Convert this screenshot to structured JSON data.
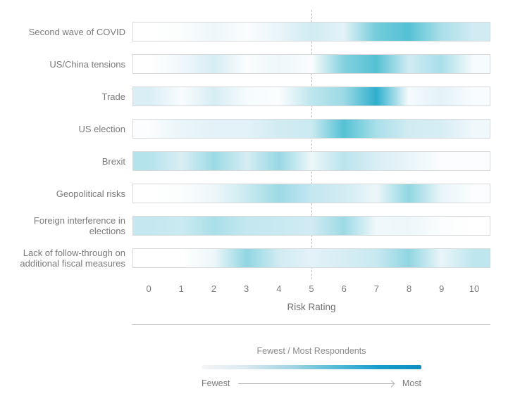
{
  "chart_data": {
    "type": "heatmap",
    "title": "",
    "xlabel": "Risk Rating",
    "x_ticks": [
      "0",
      "1",
      "2",
      "3",
      "4",
      "5",
      "6",
      "7",
      "8",
      "9",
      "10"
    ],
    "x_range": [
      0,
      10
    ],
    "reference_line_x": 5,
    "value_range": [
      0,
      100
    ],
    "rows": [
      {
        "label": "Second wave of COVID",
        "values": [
          0,
          2,
          10,
          2,
          12,
          25,
          15,
          65,
          75,
          45,
          25
        ]
      },
      {
        "label": "US/China tensions",
        "values": [
          0,
          8,
          22,
          2,
          10,
          2,
          60,
          75,
          25,
          45,
          5
        ]
      },
      {
        "label": "Trade",
        "values": [
          20,
          3,
          22,
          5,
          2,
          35,
          50,
          90,
          5,
          15,
          3
        ]
      },
      {
        "label": "US election",
        "values": [
          2,
          12,
          15,
          15,
          25,
          28,
          75,
          45,
          25,
          22,
          8
        ]
      },
      {
        "label": "Brexit",
        "values": [
          40,
          20,
          50,
          22,
          52,
          10,
          38,
          20,
          12,
          2,
          2
        ]
      },
      {
        "label": "Geopolitical risks",
        "values": [
          0,
          2,
          10,
          28,
          50,
          32,
          25,
          10,
          55,
          12,
          2
        ]
      },
      {
        "label": "Foreign interference in elections",
        "values": [
          32,
          28,
          45,
          32,
          30,
          25,
          50,
          8,
          10,
          2,
          0
        ]
      },
      {
        "label": "Lack of follow-through on additional fiscal measures",
        "values": [
          0,
          0,
          10,
          55,
          25,
          15,
          22,
          30,
          55,
          12,
          35
        ]
      }
    ],
    "color_scale_stops": [
      {
        "value": 0,
        "color": "#ffffff"
      },
      {
        "value": 20,
        "color": "#daeef5"
      },
      {
        "value": 40,
        "color": "#b5e3ec"
      },
      {
        "value": 60,
        "color": "#83d1de"
      },
      {
        "value": 80,
        "color": "#44bcd1"
      },
      {
        "value": 100,
        "color": "#16a2c6"
      }
    ],
    "legend": {
      "title": "Fewest / Most Respondents",
      "min_label": "Fewest",
      "max_label": "Most",
      "gradient_colors": [
        "#f5f5f5",
        "#d9e9f1",
        "#a5d5e6",
        "#5bbcd8",
        "#189dcb",
        "#0d8ec3"
      ]
    }
  },
  "colors": {
    "background": "#ffffff",
    "bar_border": "#d8d8d8",
    "label_text": "#7a7a7a",
    "axis_text": "#6f6f6f",
    "divider": "#c9c9c9",
    "reference_line": "#c2c2c2"
  }
}
